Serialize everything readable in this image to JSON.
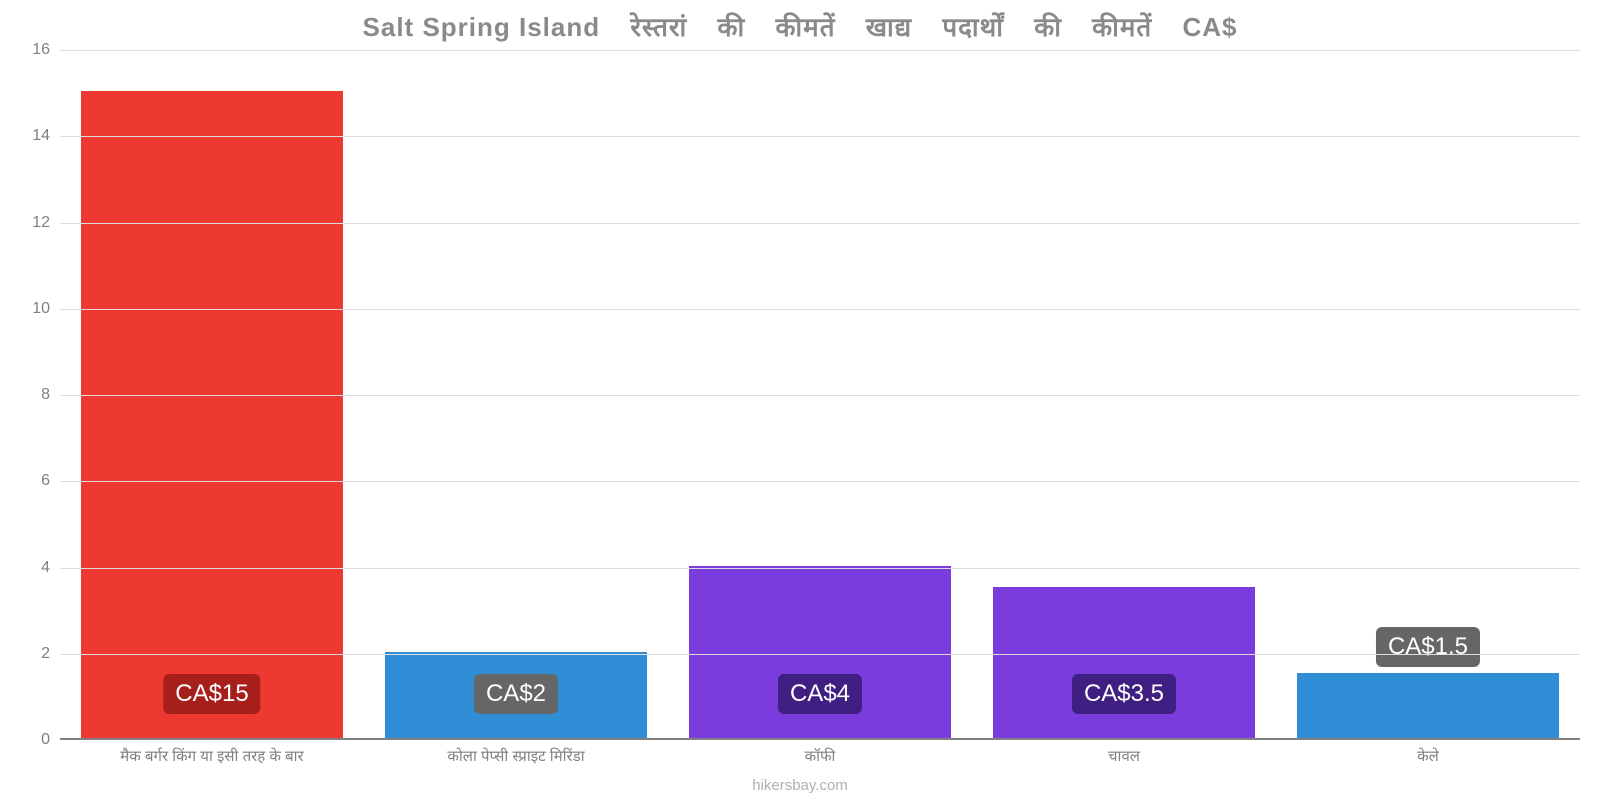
{
  "chart": {
    "type": "bar",
    "title_parts": {
      "lead": "Salt Spring Island",
      "rest": "रेस्तरां की कीमतें खाद्य पदार्थों की कीमतें CA$"
    },
    "title_color": "#8a8a8a",
    "title_fontsize": 26,
    "background_color": "#ffffff",
    "grid_color": "#dcdcdc",
    "axis_color": "#808080",
    "label_color": "#808080",
    "tick_fontsize": 16,
    "xlabel_fontsize": 15,
    "ylim": [
      0,
      16
    ],
    "yticks": [
      0,
      2,
      4,
      6,
      8,
      10,
      12,
      14,
      16
    ],
    "bar_width_pct": 86,
    "categories": [
      "मैक बर्गर किंग या इसी तरह के बार",
      "कोला पेप्सी स्प्राइट मिरिंडा",
      "कॉफी",
      "चावल",
      "केले"
    ],
    "values": [
      15,
      2,
      4,
      3.5,
      1.5
    ],
    "value_labels": [
      "CA$15",
      "CA$2",
      "CA$4",
      "CA$3.5",
      "CA$1.5"
    ],
    "bar_colors": [
      "#ee3932",
      "#2f8ed6",
      "#7a3cdc",
      "#7a3cdc",
      "#2f8ed6"
    ],
    "badge_colors": [
      "#a71f1a",
      "#666666",
      "#3f1f81",
      "#3f1f81",
      "#666666"
    ],
    "badge_text_color": "#ffffff",
    "value_fontsize": 24,
    "watermark": "hikersbay.com",
    "watermark_color": "#b0b0b0"
  }
}
